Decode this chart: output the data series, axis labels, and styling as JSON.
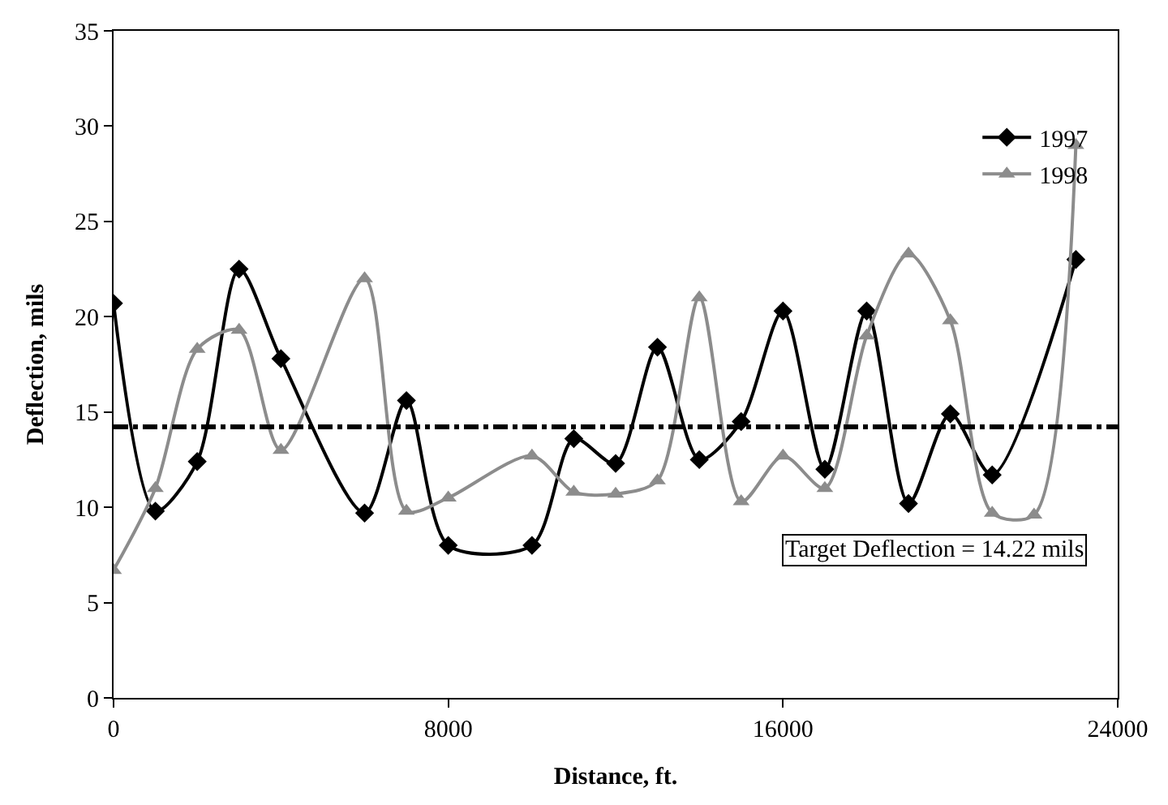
{
  "chart_data": {
    "type": "line",
    "xlabel": "Distance, ft.",
    "ylabel": "Deflection, mils",
    "xlim": [
      0,
      24000
    ],
    "xticks": [
      0,
      8000,
      16000,
      24000
    ],
    "ylim": [
      0,
      35
    ],
    "yticks": [
      0,
      5,
      10,
      15,
      20,
      25,
      30,
      35
    ],
    "legend": "top right",
    "series": [
      {
        "name": "1997",
        "color": "#000000",
        "marker": "diamond",
        "x": [
          0,
          1000,
          2000,
          3000,
          4000,
          6000,
          7000,
          8000,
          10000,
          11000,
          12000,
          13000,
          14000,
          15000,
          16000,
          17000,
          18000,
          19000,
          20000,
          21000,
          23000
        ],
        "values": [
          20.7,
          9.8,
          12.4,
          22.5,
          17.8,
          9.7,
          15.6,
          8,
          8,
          13.6,
          12.3,
          18.4,
          12.5,
          14.5,
          20.3,
          12,
          20.3,
          10.2,
          14.9,
          11.7,
          23
        ]
      },
      {
        "name": "1998",
        "color": "#8c8c8c",
        "marker": "triangle",
        "x": [
          0,
          1000,
          2000,
          3000,
          4000,
          6000,
          7000,
          8000,
          10000,
          11000,
          12000,
          13000,
          14000,
          15000,
          16000,
          17000,
          18000,
          19000,
          20000,
          21000,
          22000,
          23000
        ],
        "values": [
          6.7,
          11,
          18.3,
          19.3,
          13,
          22,
          9.8,
          10.5,
          12.7,
          10.8,
          10.7,
          11.4,
          21,
          10.3,
          12.7,
          11,
          19,
          23.3,
          19.8,
          9.7,
          9.6,
          29
        ]
      }
    ],
    "ref_lines": [
      {
        "axis": "y",
        "value": 14.22,
        "color": "#000000",
        "line_style": "dashdot"
      }
    ],
    "annotations": [
      "Target Deflection = 14.22 mils"
    ]
  }
}
